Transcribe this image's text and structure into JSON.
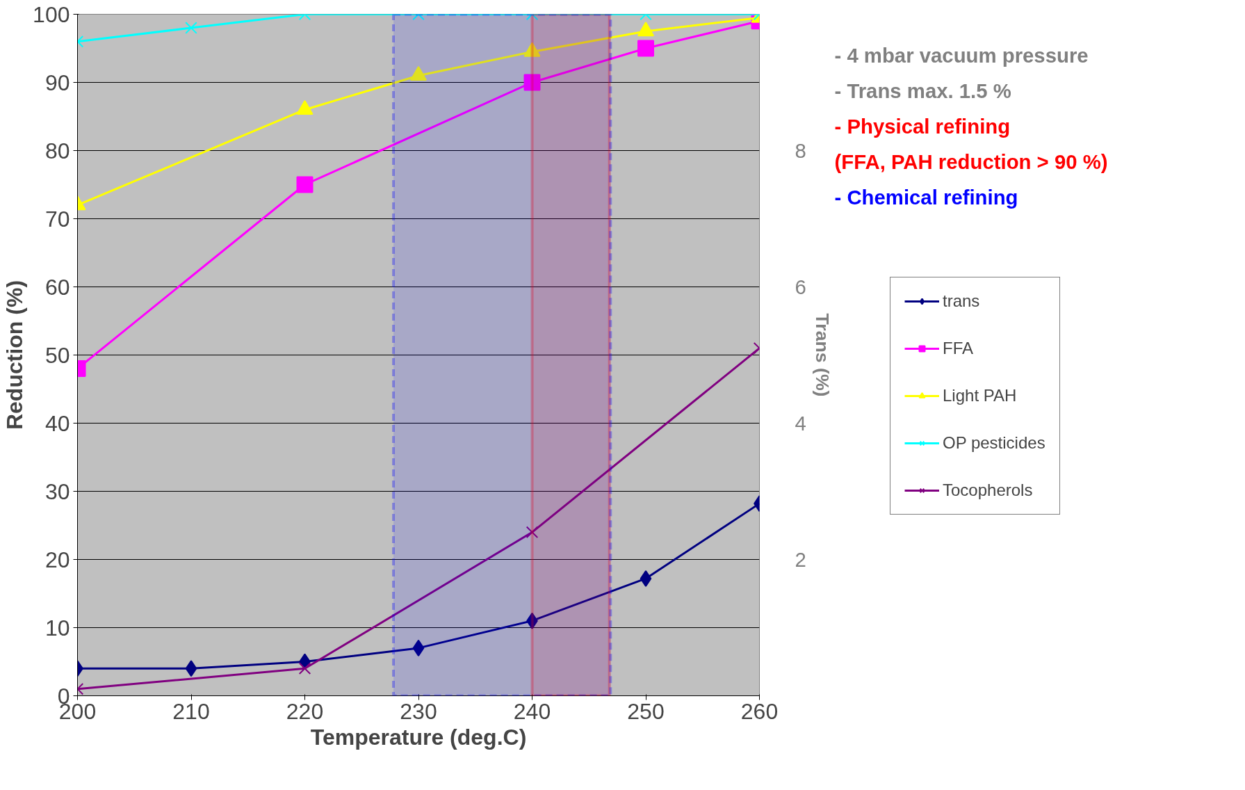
{
  "chart_data": {
    "type": "line",
    "xlabel": "Temperature (deg.C)",
    "ylabel": "Reduction (%)",
    "y2label": "Trans (%)",
    "xlim": [
      200,
      260
    ],
    "xticks": [
      200,
      210,
      220,
      230,
      240,
      250,
      260
    ],
    "ylim": [
      0,
      100
    ],
    "yticks": [
      0,
      10,
      20,
      30,
      40,
      50,
      60,
      70,
      80,
      90,
      100
    ],
    "y2lim": [
      0,
      10
    ],
    "y2ticks": [
      2,
      4,
      6,
      8
    ],
    "grid": "y",
    "legend": "right",
    "series": [
      {
        "name": "trans",
        "color": "#000080",
        "marker": "diamond",
        "axis": "y2",
        "x": [
          200,
          210,
          220,
          230,
          240,
          250,
          260
        ],
        "values": [
          0.4,
          0.4,
          0.5,
          0.7,
          1.1,
          1.72,
          2.82
        ]
      },
      {
        "name": "FFA",
        "color": "#ff00ff",
        "marker": "square",
        "x": [
          200,
          220,
          240,
          250,
          260
        ],
        "values": [
          48,
          75,
          90,
          95,
          99
        ]
      },
      {
        "name": "Light PAH",
        "color": "#ffff00",
        "marker": "triangle",
        "x": [
          200,
          220,
          230,
          240,
          250,
          260
        ],
        "values": [
          72,
          86,
          91,
          94.5,
          97.5,
          99.5
        ]
      },
      {
        "name": "OP pesticides",
        "color": "#00ffff",
        "marker": "cross",
        "x": [
          200,
          210,
          220,
          230,
          240,
          250,
          260
        ],
        "values": [
          96,
          98,
          100,
          100,
          100,
          100,
          100
        ]
      },
      {
        "name": "Tocopherols",
        "color": "#800080",
        "marker": "cross",
        "x": [
          200,
          220,
          240,
          260
        ],
        "values": [
          1,
          4,
          24,
          51
        ]
      }
    ],
    "annotations": [
      "- 4 mbar vacuum pressure",
      "- Trans max. 1.5 %"
    ],
    "bands": [
      {
        "axis": "x",
        "from": 240,
        "to": 246.8,
        "label": "- Physical refining\n (FFA, PAH reduction > 90 %)",
        "color": "#ff0000"
      },
      {
        "axis": "x",
        "from": 227.8,
        "to": 246.9,
        "label": "- Chemical refining",
        "color": "#0000ff"
      }
    ]
  }
}
